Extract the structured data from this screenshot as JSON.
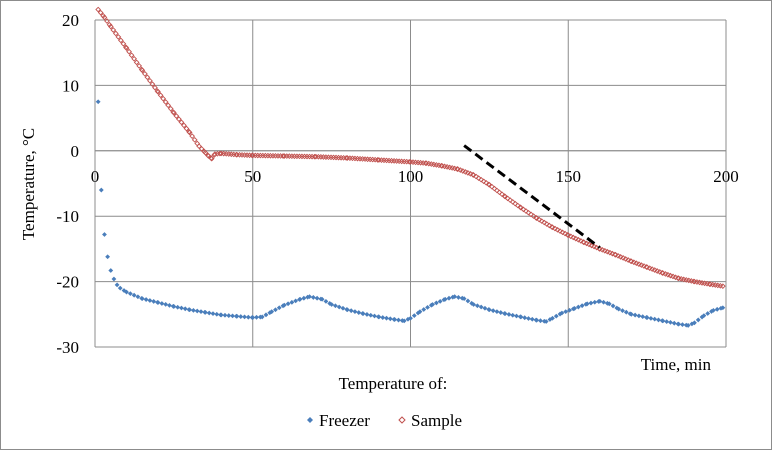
{
  "chart_data": {
    "type": "scatter",
    "xlabel": "Time, min",
    "ylabel": "Temperature, °C",
    "xlim": [
      0,
      200
    ],
    "ylim": [
      -30,
      20
    ],
    "x_ticks": [
      0,
      50,
      100,
      150,
      200
    ],
    "y_ticks": [
      20,
      10,
      0,
      -10,
      -20,
      -30
    ],
    "grid": true,
    "legend_title": "Temperature of:",
    "legend_position": "bottom",
    "series": [
      {
        "name": "Freezer",
        "color": "#4a7ebb",
        "marker": "diamond-filled",
        "points": [
          [
            1,
            7.5
          ],
          [
            2,
            -6
          ],
          [
            3,
            -12.8
          ],
          [
            4,
            -16.2
          ],
          [
            5,
            -18.3
          ],
          [
            6,
            -19.6
          ],
          [
            7,
            -20.5
          ],
          [
            8,
            -21
          ],
          [
            10,
            -21.6
          ],
          [
            15,
            -22.6
          ],
          [
            20,
            -23.2
          ],
          [
            25,
            -23.8
          ],
          [
            30,
            -24.3
          ],
          [
            35,
            -24.7
          ],
          [
            40,
            -25.1
          ],
          [
            45,
            -25.3
          ],
          [
            50,
            -25.5
          ],
          [
            53,
            -25.4
          ],
          [
            56,
            -24.6
          ],
          [
            60,
            -23.6
          ],
          [
            65,
            -22.7
          ],
          [
            68,
            -22.3
          ],
          [
            72,
            -22.7
          ],
          [
            75,
            -23.5
          ],
          [
            80,
            -24.3
          ],
          [
            85,
            -24.9
          ],
          [
            90,
            -25.4
          ],
          [
            95,
            -25.8
          ],
          [
            98,
            -26.0
          ],
          [
            100,
            -25.6
          ],
          [
            103,
            -24.6
          ],
          [
            107,
            -23.5
          ],
          [
            111,
            -22.7
          ],
          [
            114,
            -22.3
          ],
          [
            117,
            -22.6
          ],
          [
            120,
            -23.5
          ],
          [
            125,
            -24.3
          ],
          [
            130,
            -24.9
          ],
          [
            135,
            -25.4
          ],
          [
            140,
            -25.9
          ],
          [
            143,
            -26.1
          ],
          [
            145,
            -25.6
          ],
          [
            148,
            -24.8
          ],
          [
            152,
            -24.1
          ],
          [
            156,
            -23.4
          ],
          [
            160,
            -23.0
          ],
          [
            163,
            -23.4
          ],
          [
            166,
            -24.2
          ],
          [
            170,
            -25.0
          ],
          [
            175,
            -25.5
          ],
          [
            180,
            -26.0
          ],
          [
            185,
            -26.5
          ],
          [
            188,
            -26.7
          ],
          [
            190,
            -26.3
          ],
          [
            193,
            -25.2
          ],
          [
            196,
            -24.4
          ],
          [
            199,
            -24.0
          ]
        ]
      },
      {
        "name": "Sample",
        "color": "#c0504d",
        "marker": "diamond-open",
        "points": [
          [
            1,
            21.6
          ],
          [
            3,
            20.4
          ],
          [
            5,
            19.0
          ],
          [
            10,
            15.7
          ],
          [
            15,
            12.3
          ],
          [
            20,
            9.0
          ],
          [
            25,
            5.8
          ],
          [
            30,
            2.8
          ],
          [
            33,
            0.7
          ],
          [
            35,
            -0.3
          ],
          [
            36,
            -0.8
          ],
          [
            37,
            -1.2
          ],
          [
            38,
            -0.5
          ],
          [
            40,
            -0.4
          ],
          [
            45,
            -0.6
          ],
          [
            50,
            -0.7
          ],
          [
            60,
            -0.8
          ],
          [
            70,
            -0.9
          ],
          [
            80,
            -1.1
          ],
          [
            90,
            -1.4
          ],
          [
            100,
            -1.7
          ],
          [
            105,
            -1.9
          ],
          [
            110,
            -2.3
          ],
          [
            115,
            -2.8
          ],
          [
            120,
            -3.7
          ],
          [
            125,
            -5.2
          ],
          [
            130,
            -7.0
          ],
          [
            135,
            -8.7
          ],
          [
            140,
            -10.3
          ],
          [
            145,
            -11.7
          ],
          [
            150,
            -12.9
          ],
          [
            155,
            -14.0
          ],
          [
            160,
            -15.0
          ],
          [
            165,
            -15.9
          ],
          [
            170,
            -16.9
          ],
          [
            175,
            -17.8
          ],
          [
            180,
            -18.7
          ],
          [
            185,
            -19.5
          ],
          [
            190,
            -20.0
          ],
          [
            195,
            -20.4
          ],
          [
            199,
            -20.7
          ]
        ]
      }
    ],
    "annotation_line": {
      "style": "dashed",
      "color": "#000000",
      "points": [
        [
          117,
          0.8
        ],
        [
          160,
          -14.8
        ]
      ]
    }
  }
}
